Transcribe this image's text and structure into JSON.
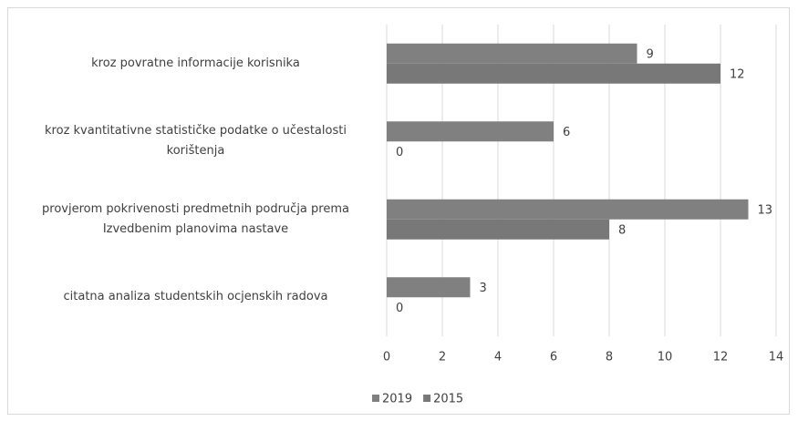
{
  "chart_data": {
    "type": "bar",
    "orientation": "horizontal",
    "categories": [
      "kroz povratne informacije korisnika",
      "kroz kvantitativne statističke podatke o učestalosti korištenja",
      "provjerom pokrivenosti predmetnih područja prema Izvedbenim planovima nastave",
      "citatna analiza studentskih ocjenskih radova"
    ],
    "series": [
      {
        "name": "2019",
        "color": "#808080",
        "values": [
          9,
          6,
          13,
          3
        ]
      },
      {
        "name": "2015",
        "color": "#787878",
        "values": [
          12,
          0,
          8,
          0
        ]
      }
    ],
    "xlim": [
      0,
      14
    ],
    "xticks": [
      0,
      2,
      4,
      6,
      8,
      10,
      12,
      14
    ],
    "grid": true,
    "legend": "bottom"
  }
}
